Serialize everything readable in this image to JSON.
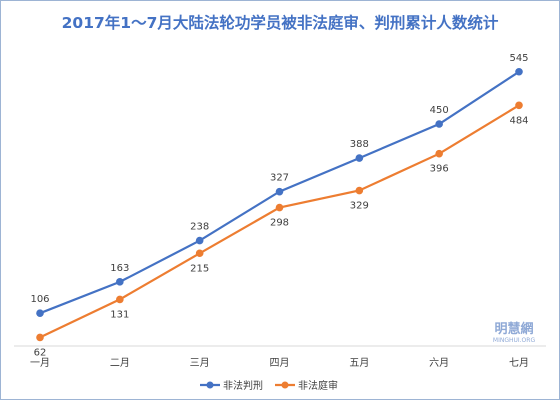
{
  "chart_data": {
    "type": "line",
    "title": "2017年1～7月大陆法轮功学员被非法庭审、判刑累计人数统计",
    "categories": [
      "一月",
      "二月",
      "三月",
      "四月",
      "五月",
      "六月",
      "七月"
    ],
    "series": [
      {
        "name": "非法判刑",
        "values": [
          106,
          163,
          238,
          327,
          388,
          450,
          545
        ],
        "color": "#4472c4"
      },
      {
        "name": "非法庭审",
        "values": [
          62,
          131,
          215,
          298,
          329,
          396,
          484
        ],
        "color": "#ed7d31"
      }
    ],
    "xlabel": "",
    "ylabel": "",
    "ylim": [
      0,
      600
    ],
    "grid": false,
    "legend": "bottom",
    "title_color": "#4472c4",
    "watermark": {
      "main": "明慧網",
      "sub": "MINGHUI.ORG",
      "color": "#8fa9d6"
    }
  }
}
